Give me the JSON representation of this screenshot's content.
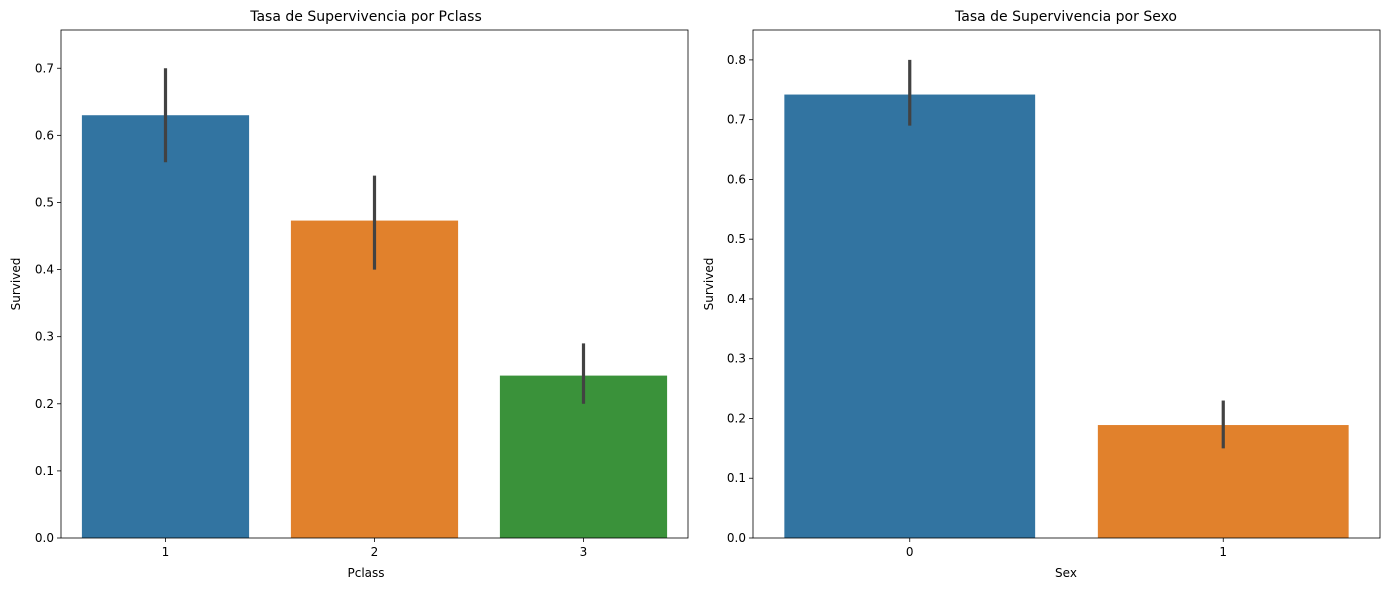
{
  "chart_data": [
    {
      "type": "bar",
      "title": "Tasa de Supervivencia por Pclass",
      "xlabel": "Pclass",
      "ylabel": "Survived",
      "categories": [
        "1",
        "2",
        "3"
      ],
      "values": [
        0.63,
        0.473,
        0.242
      ],
      "error_bars": [
        [
          0.56,
          0.7
        ],
        [
          0.4,
          0.54
        ],
        [
          0.2,
          0.29
        ]
      ],
      "colors": [
        "#3274a1",
        "#e1812c",
        "#3a923a"
      ],
      "ylim": [
        0,
        0.757
      ],
      "yticks": [
        "0.0",
        "0.1",
        "0.2",
        "0.3",
        "0.4",
        "0.5",
        "0.6",
        "0.7"
      ],
      "grid": false
    },
    {
      "type": "bar",
      "title": "Tasa de Supervivencia por Sexo",
      "xlabel": "Sex",
      "ylabel": "Survived",
      "categories": [
        "0",
        "1"
      ],
      "values": [
        0.742,
        0.189
      ],
      "error_bars": [
        [
          0.69,
          0.8
        ],
        [
          0.15,
          0.23
        ]
      ],
      "colors": [
        "#3274a1",
        "#e1812c"
      ],
      "ylim": [
        0,
        0.85
      ],
      "yticks": [
        "0.0",
        "0.1",
        "0.2",
        "0.3",
        "0.4",
        "0.5",
        "0.6",
        "0.7",
        "0.8"
      ],
      "grid": false
    }
  ]
}
